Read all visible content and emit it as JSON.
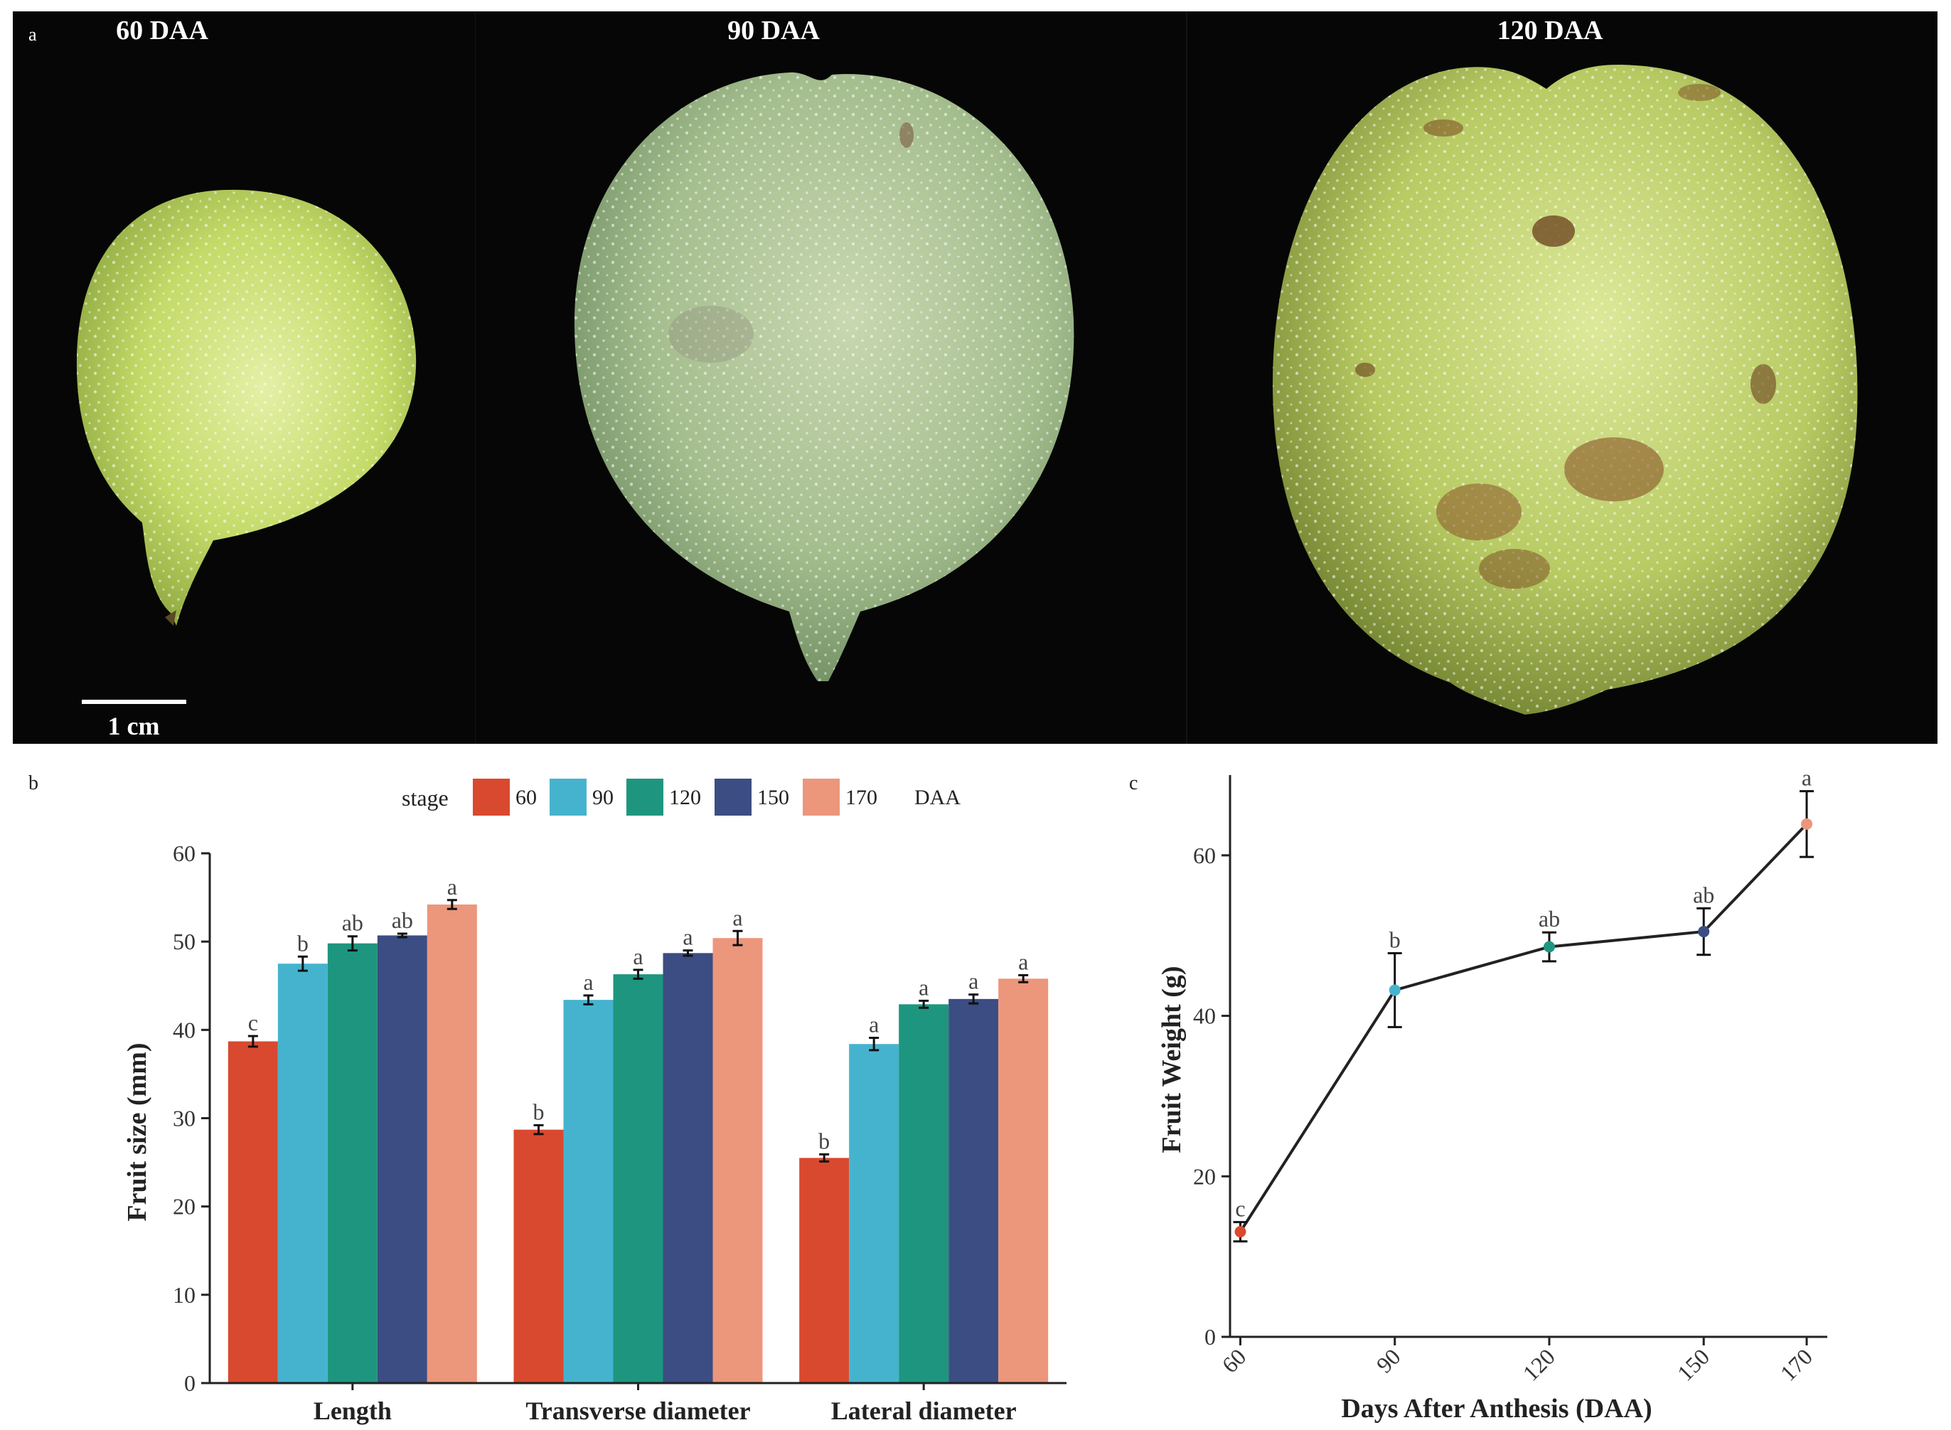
{
  "colors": {
    "stage_60": "#d9492f",
    "stage_90": "#46b3ce",
    "stage_120": "#1e967f",
    "stage_150": "#3b4d82",
    "stage_170": "#ec967c",
    "line": "#222222",
    "photo_background": "#060606"
  },
  "panel_a": {
    "label": "a",
    "scale_bar_label": "1 cm",
    "photos": [
      {
        "title": "60 DAA",
        "subject": "fruit-60-daa"
      },
      {
        "title": "90 DAA",
        "subject": "fruit-90-daa"
      },
      {
        "title": "120 DAA",
        "subject": "fruit-120-daa"
      }
    ]
  },
  "chart_data": [
    {
      "panel_label": "b",
      "type": "bar",
      "title": "",
      "xlabel": "",
      "ylabel": "Fruit size (mm)",
      "ylim": [
        0,
        60
      ],
      "yticks": [
        0,
        10,
        20,
        30,
        40,
        50,
        60
      ],
      "grid": false,
      "legend": {
        "title": "stage",
        "position": "top",
        "unit_suffix": "DAA"
      },
      "categories": [
        "Length",
        "Transverse diameter",
        "Lateral diameter"
      ],
      "series": [
        {
          "name": "60",
          "values": [
            38.7,
            28.7,
            25.5
          ],
          "errors": [
            0.6,
            0.5,
            0.4
          ],
          "letters": [
            "c",
            "b",
            "b"
          ]
        },
        {
          "name": "90",
          "values": [
            47.5,
            43.4,
            38.4
          ],
          "errors": [
            0.8,
            0.5,
            0.7
          ],
          "letters": [
            "b",
            "a",
            "a"
          ]
        },
        {
          "name": "120",
          "values": [
            49.8,
            46.3,
            42.9
          ],
          "errors": [
            0.8,
            0.5,
            0.4
          ],
          "letters": [
            "ab",
            "a",
            "a"
          ]
        },
        {
          "name": "150",
          "values": [
            50.7,
            48.7,
            43.5
          ],
          "errors": [
            0.2,
            0.3,
            0.5
          ],
          "letters": [
            "ab",
            "a",
            "a"
          ]
        },
        {
          "name": "170",
          "values": [
            54.2,
            50.4,
            45.8
          ],
          "errors": [
            0.5,
            0.8,
            0.4
          ],
          "letters": [
            "a",
            "a",
            "a"
          ]
        }
      ]
    },
    {
      "panel_label": "c",
      "type": "line",
      "title": "",
      "xlabel": "Days After Anthesis (DAA)",
      "ylabel": "Fruit Weight (g)",
      "xlim": [
        58,
        174
      ],
      "ylim": [
        0,
        70
      ],
      "yticks": [
        0,
        20,
        40,
        60
      ],
      "grid": false,
      "x": [
        60,
        90,
        120,
        150,
        170
      ],
      "x_tick_labels": [
        "60",
        "90",
        "120",
        "150",
        "170"
      ],
      "y": [
        13.1,
        43.2,
        48.6,
        50.5,
        63.9
      ],
      "errors": [
        1.2,
        4.6,
        1.8,
        2.9,
        4.1
      ],
      "letters": [
        "c",
        "b",
        "ab",
        "ab",
        "a"
      ]
    }
  ]
}
